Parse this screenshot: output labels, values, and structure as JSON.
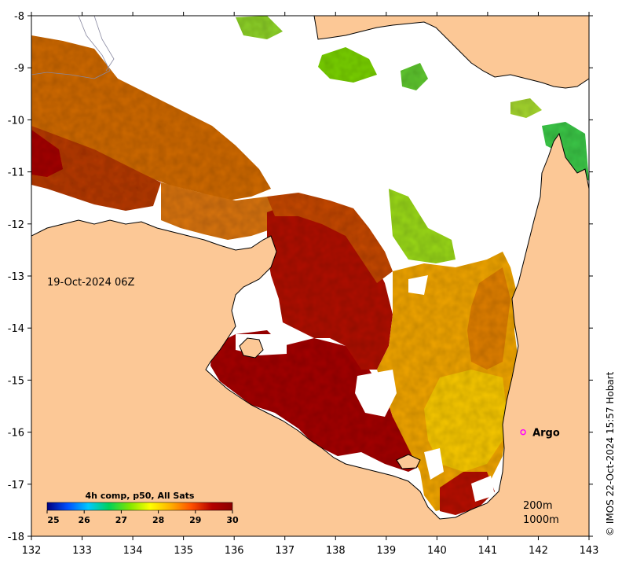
{
  "map": {
    "date_label": "19-Oct-2024 06Z",
    "credit": "© IMOS 22-Oct-2024 15:57 Hobart",
    "depth_labels": [
      "200m",
      "1000m"
    ],
    "colors": {
      "land": "#fcc896",
      "cloud_gap": "#ffffff",
      "coast": "#000000"
    },
    "x_axis": {
      "ticks": [
        "132",
        "133",
        "134",
        "135",
        "136",
        "137",
        "138",
        "139",
        "140",
        "141",
        "142",
        "143"
      ]
    },
    "y_axis": {
      "ticks": [
        "-8",
        "-9",
        "-10",
        "-11",
        "-12",
        "-13",
        "-14",
        "-15",
        "-16",
        "-17",
        "-18"
      ]
    },
    "marker": {
      "label": "Argo",
      "color": "#ff00ff",
      "lon": 141.7,
      "lat": -16.0
    },
    "colorbar": {
      "title": "4h comp, p50, All Sats",
      "min": 25,
      "max": 30,
      "ticks": [
        "25",
        "26",
        "27",
        "28",
        "29",
        "30"
      ],
      "stops": [
        "#00007f",
        "#0050ff",
        "#00c8ff",
        "#00d25a",
        "#7fe600",
        "#ffff00",
        "#ffb000",
        "#ff5000",
        "#b40000",
        "#8b0000"
      ]
    }
  }
}
